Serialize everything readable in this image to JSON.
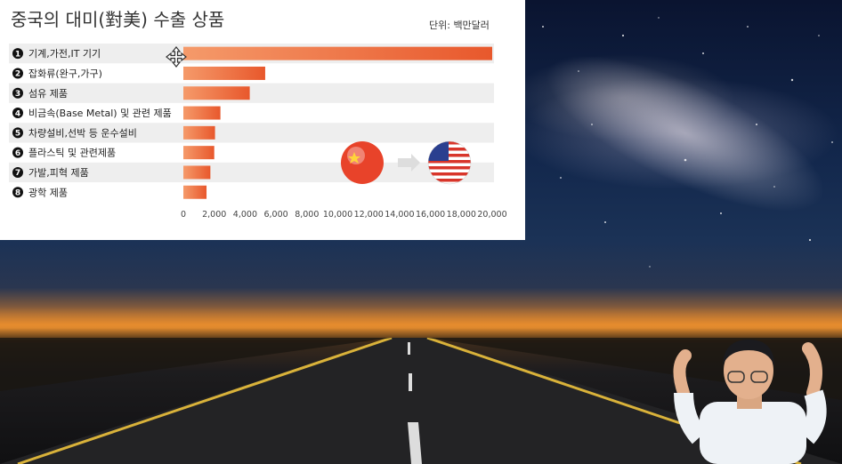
{
  "chart_panel": {
    "title": "중국의 대미(對美) 수출 상품",
    "unit_label": "단위: 백만달러"
  },
  "chart_data": {
    "type": "bar",
    "orientation": "horizontal",
    "title": "중국의 대미(對美) 수출 상품",
    "unit": "단위: 백만달러",
    "categories": [
      "기계,가전,IT 기기",
      "잡화류(완구,가구)",
      "섬유 제품",
      "비금속(Base Metal) 및 관련 제품",
      "차량설비,선박 등 운수설비",
      "플라스틱 및 관련제품",
      "가발,피혁 제품",
      "광학 제품"
    ],
    "rank_markers": [
      "1",
      "2",
      "3",
      "4",
      "5",
      "6",
      "7",
      "8"
    ],
    "values": [
      20000,
      5300,
      4300,
      2400,
      2050,
      2000,
      1750,
      1500
    ],
    "xlim": [
      0,
      20000
    ],
    "xticks": [
      "0",
      "2,000",
      "4,000",
      "6,000",
      "8,000",
      "10,000",
      "12,000",
      "14,000",
      "16,000",
      "18,000",
      "20,000"
    ],
    "bar_color": "#e8582c",
    "bar_color_light": "#f59a6a",
    "row_stripe_color": "#eeeeee",
    "grid": false
  },
  "icons": {
    "cursor": "move-cursor-icon",
    "china_ball": "china-flag-ball-icon",
    "usa_ball": "usa-flag-ball-icon",
    "arrow": "arrow-right-icon",
    "person": "presenter-webcam"
  }
}
